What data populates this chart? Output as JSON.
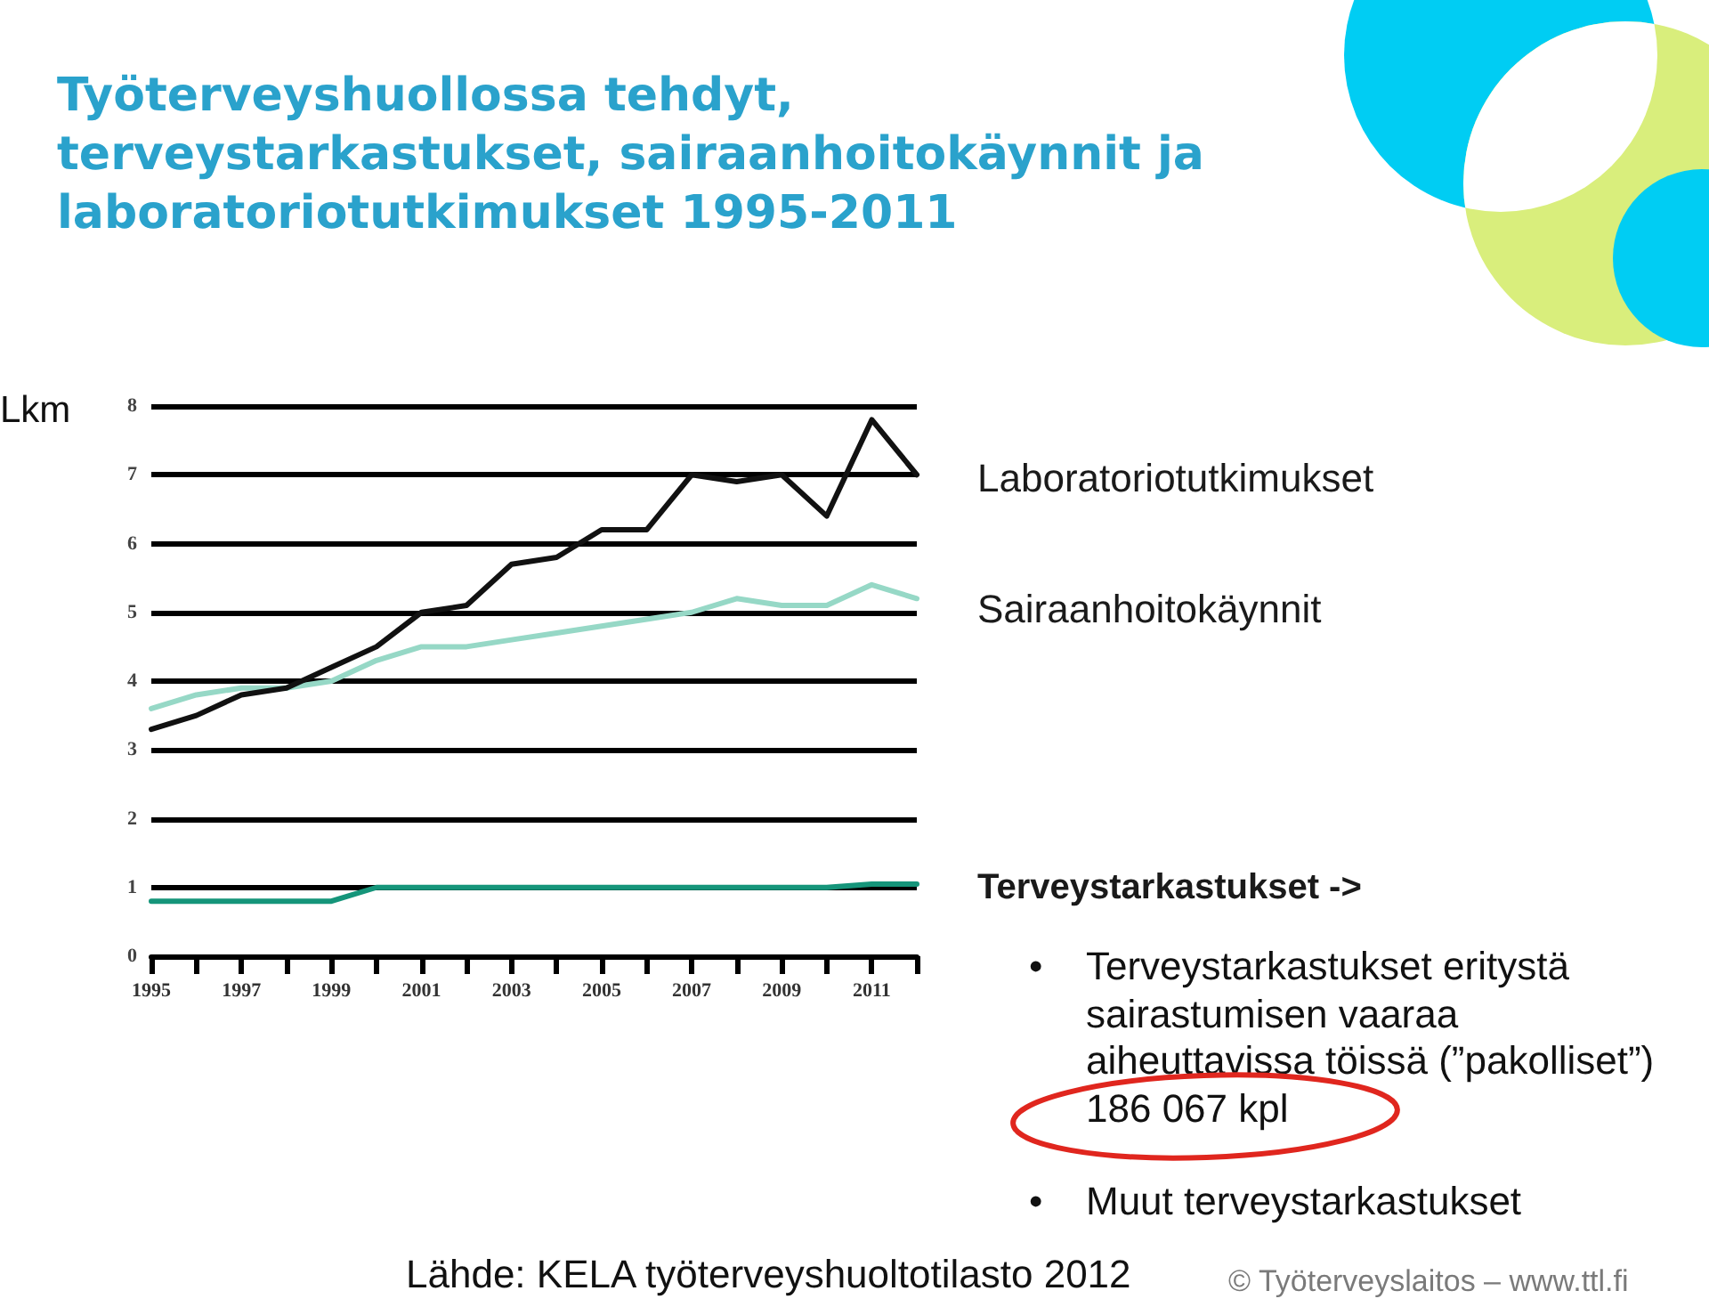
{
  "chart_data": {
    "type": "line",
    "title": "Työterveyshuollossa tehdyt, terveystarkastukset, sairaanhoitokäynnit ja laboratoriotutkimukset 1995-2011",
    "ylabel": "Lkm",
    "categories": [
      "1995",
      null,
      "1997",
      null,
      "1999",
      null,
      "2001",
      null,
      "2003",
      null,
      "2005",
      null,
      "2007",
      null,
      "2009",
      null,
      "2011",
      null
    ],
    "series": [
      {
        "name": "Laboratoriotutkimukset",
        "color": "#111111",
        "values": [
          3.3,
          3.5,
          3.8,
          3.9,
          4.2,
          4.5,
          5.0,
          5.1,
          5.7,
          5.8,
          6.2,
          6.2,
          7.0,
          6.9,
          7.0,
          6.4,
          7.8,
          7.0
        ]
      },
      {
        "name": "Sairaanhoitokäynnit",
        "color": "#96d8c6",
        "values": [
          3.6,
          3.8,
          3.9,
          3.9,
          4.0,
          4.3,
          4.5,
          4.5,
          4.6,
          4.7,
          4.8,
          4.9,
          5.0,
          5.2,
          5.1,
          5.1,
          5.4,
          5.2
        ]
      },
      {
        "name": "Terveystarkastukset ->",
        "color": "#15957a",
        "values": [
          0.8,
          0.8,
          0.8,
          0.8,
          0.8,
          1.0,
          1.0,
          1.0,
          1.0,
          1.0,
          1.0,
          1.0,
          1.0,
          1.0,
          1.0,
          1.0,
          1.05,
          1.05
        ]
      }
    ],
    "ylim": [
      0,
      8
    ],
    "yticks": [
      0,
      1,
      2,
      3,
      4,
      5,
      6,
      7,
      8
    ],
    "grid": "y",
    "legend": false,
    "marker": "none",
    "line_style": "solid",
    "annotations": [
      "• Terveystarkastukset eritystä sairastumisen vaaraa aiheuttavissa töissä (”pakolliset”) 186 067 kpl",
      "• Muut terveystarkastukset",
      "Lähde: KELA työterveyshuoltotilasto 2012",
      "© Työterveyslaitos – www.ttl.fi"
    ]
  }
}
